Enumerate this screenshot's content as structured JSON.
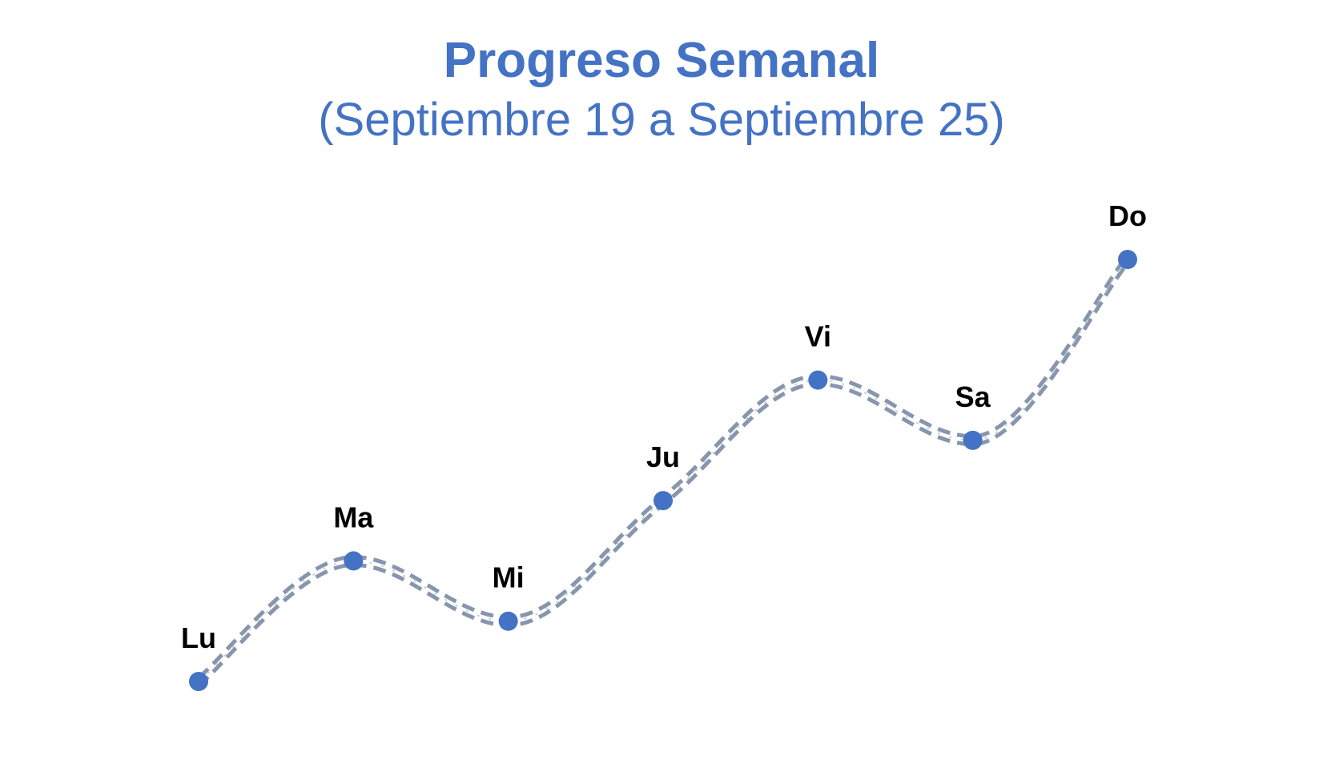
{
  "chart_data": {
    "type": "line",
    "title": "Progreso Semanal",
    "subtitle": "(Septiembre 19 a Septiembre 25)",
    "categories": [
      "Lu",
      "Ma",
      "Mi",
      "Ju",
      "Vi",
      "Sa",
      "Do"
    ],
    "values": [
      0,
      2,
      1,
      3,
      5,
      4,
      7
    ],
    "ylim": [
      0,
      7
    ],
    "xlabel": "",
    "ylabel": "",
    "grid": false,
    "legend": "none",
    "axes_visible": false,
    "line_style": "double-dashed",
    "colors": {
      "title": "#4472c4",
      "marker": "#4472c4",
      "line": "#8796ad",
      "label": "#000000"
    }
  }
}
